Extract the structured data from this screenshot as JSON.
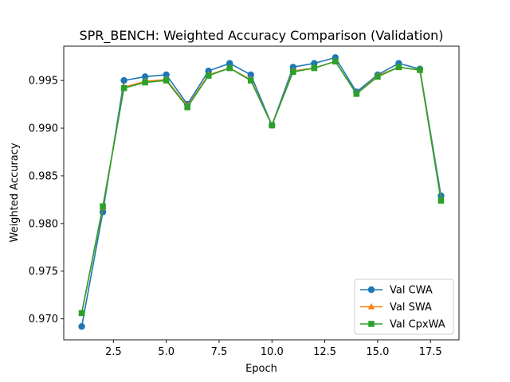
{
  "chart_data": {
    "type": "line",
    "title": "SPR_BENCH: Weighted Accuracy Comparison (Validation)",
    "xlabel": "Epoch",
    "ylabel": "Weighted Accuracy",
    "xlim": [
      0.15,
      18.85
    ],
    "ylim": [
      0.9678,
      0.9986
    ],
    "xticks": [
      2.5,
      5.0,
      7.5,
      10.0,
      12.5,
      15.0,
      17.5
    ],
    "xtick_labels": [
      "2.5",
      "5.0",
      "7.5",
      "10.0",
      "12.5",
      "15.0",
      "17.5"
    ],
    "yticks": [
      0.97,
      0.975,
      0.98,
      0.985,
      0.99,
      0.995
    ],
    "ytick_labels": [
      "0.970",
      "0.975",
      "0.980",
      "0.985",
      "0.990",
      "0.995"
    ],
    "grid": false,
    "legend_position": "bottom-right",
    "x": [
      1,
      2,
      3,
      4,
      5,
      6,
      7,
      8,
      9,
      10,
      11,
      12,
      13,
      14,
      15,
      16,
      17,
      18
    ],
    "series": [
      {
        "name": "Val CWA",
        "color": "#1f77b4",
        "marker": "circle",
        "values": [
          0.9692,
          0.9812,
          0.995,
          0.9954,
          0.9956,
          0.9925,
          0.996,
          0.9968,
          0.9956,
          0.9903,
          0.9964,
          0.9968,
          0.9974,
          0.9938,
          0.9956,
          0.9968,
          0.9962,
          0.9829
        ]
      },
      {
        "name": "Val SWA",
        "color": "#ff7f0e",
        "marker": "triangle",
        "values": [
          0.9706,
          0.9817,
          0.9943,
          0.9949,
          0.9951,
          0.9923,
          0.9956,
          0.9963,
          0.9951,
          0.9903,
          0.996,
          0.9963,
          0.997,
          0.9936,
          0.9955,
          0.9964,
          0.9961,
          0.9825
        ]
      },
      {
        "name": "Val CpxWA",
        "color": "#2ca02c",
        "marker": "square",
        "values": [
          0.9706,
          0.9818,
          0.9942,
          0.9948,
          0.995,
          0.9922,
          0.9955,
          0.9963,
          0.995,
          0.9903,
          0.9959,
          0.9963,
          0.997,
          0.9936,
          0.9954,
          0.9964,
          0.9961,
          0.9824
        ]
      }
    ]
  }
}
